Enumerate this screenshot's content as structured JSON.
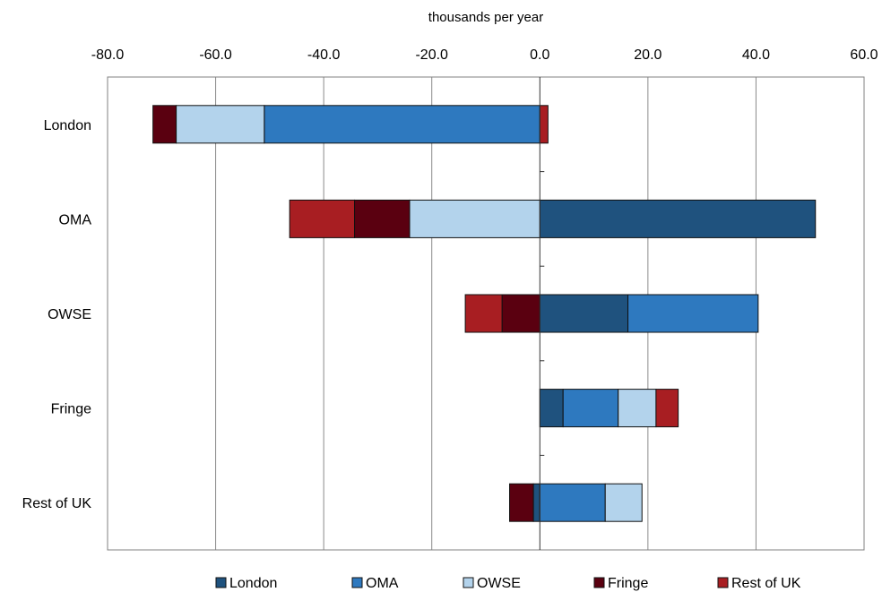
{
  "chart_data": {
    "type": "bar",
    "orientation": "horizontal",
    "stacked": true,
    "title": "",
    "xlabel": "thousands per year",
    "ylabel": "",
    "xlim": [
      -80,
      60
    ],
    "xticks": [
      -80,
      -60,
      -40,
      -20,
      0,
      20,
      40,
      60
    ],
    "xtick_labels": [
      "-80.0",
      "-60.0",
      "-40.0",
      "-20.0",
      "0.0",
      "20.0",
      "40.0",
      "60.0"
    ],
    "x_axis_position": "top",
    "grid": "vertical",
    "legend_position": "bottom",
    "categories": [
      "London",
      "OMA",
      "OWSE",
      "Fringe",
      "Rest of UK"
    ],
    "series": [
      {
        "name": "London",
        "color": "#1f527e",
        "values": [
          0,
          51,
          16.3,
          4.3,
          -1.2
        ]
      },
      {
        "name": "OMA",
        "color": "#2e79bf",
        "values": [
          -51,
          0,
          24.1,
          10.2,
          12.1
        ]
      },
      {
        "name": "OWSE",
        "color": "#b3d3ec",
        "values": [
          -16.3,
          -24.1,
          0,
          7.0,
          6.8
        ]
      },
      {
        "name": "Fringe",
        "color": "#5a0010",
        "values": [
          -4.3,
          -10.2,
          -7.0,
          0,
          -4.4
        ]
      },
      {
        "name": "Rest of UK",
        "color": "#a81e22",
        "values": [
          1.5,
          -12.0,
          -6.8,
          4.1,
          0
        ]
      }
    ]
  }
}
